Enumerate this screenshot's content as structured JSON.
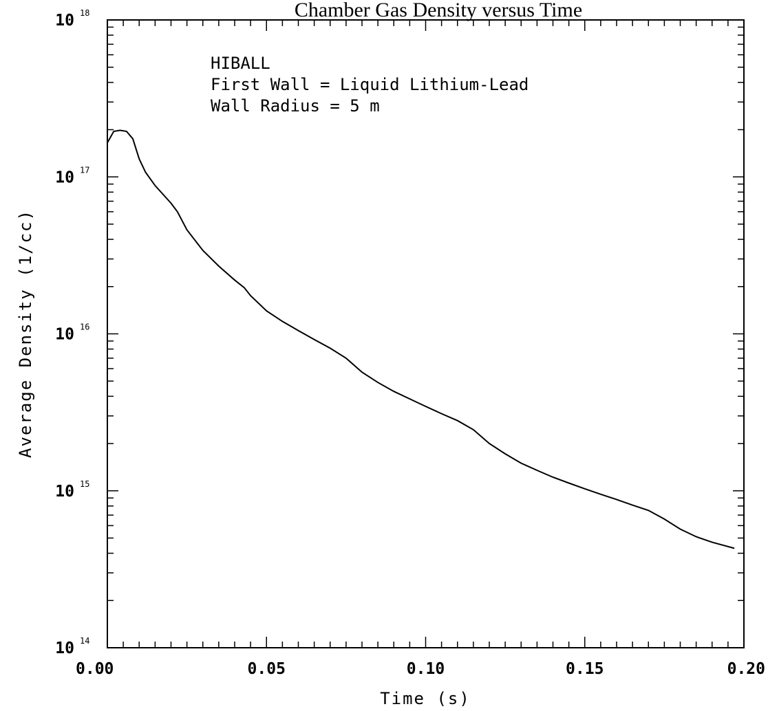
{
  "chart_data": {
    "type": "line",
    "title": "Chamber Gas Density versus Time",
    "xlabel": "Time (s)",
    "ylabel": "Average Density (1/cc)",
    "xlim": [
      0,
      0.2
    ],
    "ylim": [
      100000000000000.0,
      1e+18
    ],
    "yscale": "log",
    "grid": false,
    "x_ticks": [
      "0.00",
      "0.05",
      "0.10",
      "0.15",
      "0.20"
    ],
    "y_ticks": [
      {
        "base": "10",
        "exp": "14"
      },
      {
        "base": "10",
        "exp": "15"
      },
      {
        "base": "10",
        "exp": "16"
      },
      {
        "base": "10",
        "exp": "17"
      },
      {
        "base": "10",
        "exp": "18"
      }
    ],
    "annotations": [
      "HIBALL",
      "First Wall = Liquid Lithium-Lead",
      "Wall Radius = 5 m"
    ],
    "series": [
      {
        "x": [
          0.0,
          0.002,
          0.004,
          0.006,
          0.008,
          0.01,
          0.012,
          0.015,
          0.02,
          0.022,
          0.025,
          0.03,
          0.035,
          0.04,
          0.043,
          0.045,
          0.05,
          0.055,
          0.06,
          0.065,
          0.07,
          0.075,
          0.08,
          0.085,
          0.09,
          0.095,
          0.1,
          0.105,
          0.11,
          0.115,
          0.12,
          0.125,
          0.13,
          0.135,
          0.14,
          0.145,
          0.15,
          0.155,
          0.16,
          0.165,
          0.17,
          0.175,
          0.18,
          0.185,
          0.19,
          0.197
        ],
        "y": [
          1.65e+17,
          1.95e+17,
          1.98e+17,
          1.95e+17,
          1.75e+17,
          1.3e+17,
          1.07e+17,
          8.8e+16,
          6.8e+16,
          6e+16,
          4.6e+16,
          3.4e+16,
          2.7e+16,
          2.2e+16,
          1.97e+16,
          1.75e+16,
          1.4e+16,
          1.2e+16,
          1.05e+16,
          9200000000000000.0,
          8100000000000000.0,
          7000000000000000.0,
          5700000000000000.0,
          4900000000000000.0,
          4300000000000000.0,
          3850000000000000.0,
          3450000000000000.0,
          3100000000000000.0,
          2800000000000000.0,
          2450000000000000.0,
          2000000000000000.0,
          1720000000000000.0,
          1500000000000000.0,
          1350000000000000.0,
          1220000000000000.0,
          1120000000000000.0,
          1030000000000000.0,
          950000000000000.0,
          880000000000000.0,
          810000000000000.0,
          750000000000000.0,
          660000000000000.0,
          570000000000000.0,
          510000000000000.0,
          470000000000000.0,
          430000000000000.0
        ]
      }
    ]
  }
}
